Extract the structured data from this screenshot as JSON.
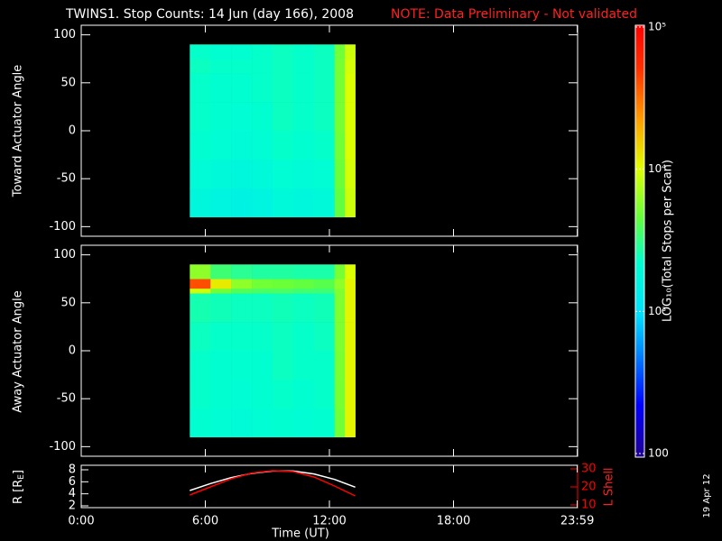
{
  "chart_data": [
    {
      "type": "heatmap",
      "title": "TWINS1. Stop Counts: 14 Jun (day 166), 2008",
      "note": "NOTE: Data Preliminary - Not validated",
      "ylabel": "Toward Actuator Angle",
      "ylim": [
        -110,
        110
      ],
      "yticks": [
        -100,
        -50,
        0,
        50,
        100
      ],
      "colorbar": {
        "label": "LOG₁₀(Total Stops per Scan)",
        "log": true,
        "lim": [
          100,
          100000
        ],
        "ticks": [
          {
            "value": 100,
            "label": "100"
          },
          {
            "value": 1000,
            "label": "10³"
          },
          {
            "value": 10000,
            "label": "10⁴"
          },
          {
            "value": 100000,
            "label": "10⁵"
          }
        ]
      },
      "xedges": [
        5.25,
        6.25,
        7.25,
        8.25,
        9.25,
        10.25,
        11.25,
        12.25,
        12.75,
        13.25
      ],
      "yedges": [
        -90,
        -60,
        -30,
        0,
        30,
        60,
        65,
        75,
        90
      ],
      "z": [
        [
          1800,
          1700,
          1600,
          1700,
          1900,
          1800,
          1900,
          4500,
          9000
        ],
        [
          2000,
          1900,
          1800,
          1900,
          2100,
          2000,
          2100,
          4800,
          9500
        ],
        [
          2200,
          2100,
          2000,
          2100,
          2300,
          2200,
          2300,
          5000,
          10000
        ],
        [
          2300,
          2200,
          2100,
          2200,
          2400,
          2300,
          2400,
          5200,
          10000
        ],
        [
          2300,
          2200,
          2200,
          2300,
          2400,
          2300,
          2400,
          5200,
          10000
        ],
        [
          2400,
          2300,
          2300,
          2300,
          2400,
          2300,
          2400,
          5200,
          9500
        ],
        [
          2400,
          2300,
          2300,
          2300,
          2400,
          2300,
          2400,
          5200,
          9500
        ],
        [
          2300,
          2200,
          2200,
          2300,
          2400,
          2300,
          2400,
          5000,
          9000
        ]
      ]
    },
    {
      "type": "heatmap",
      "ylabel": "Away Actuator Angle",
      "ylim": [
        -110,
        110
      ],
      "yticks": [
        -100,
        -50,
        0,
        50,
        100
      ],
      "xedges": [
        5.25,
        6.25,
        7.25,
        8.25,
        9.25,
        10.25,
        11.25,
        12.25,
        12.75,
        13.25
      ],
      "yedges": [
        -90,
        -60,
        -30,
        0,
        30,
        60,
        65,
        75,
        90
      ],
      "z": [
        [
          2200,
          2100,
          2000,
          2100,
          2200,
          2100,
          2200,
          5000,
          11000
        ],
        [
          2300,
          2200,
          2100,
          2200,
          2300,
          2200,
          2300,
          5200,
          11000
        ],
        [
          2300,
          2200,
          2200,
          2200,
          2400,
          2300,
          2300,
          5300,
          11000
        ],
        [
          2400,
          2300,
          2300,
          2300,
          2400,
          2300,
          2400,
          5400,
          11000
        ],
        [
          2600,
          2500,
          2400,
          2400,
          2500,
          2400,
          2500,
          5500,
          11000
        ],
        [
          9000,
          5000,
          4000,
          3800,
          3800,
          3600,
          3500,
          5500,
          11000
        ],
        [
          40000,
          12000,
          6000,
          5000,
          4800,
          4500,
          4200,
          6000,
          11000
        ],
        [
          6000,
          3500,
          3000,
          2800,
          2800,
          2700,
          2700,
          5200,
          10000
        ]
      ]
    },
    {
      "type": "line",
      "xlabel": "Time (UT)",
      "xlim": [
        0,
        24
      ],
      "xticks": [
        {
          "value": 0,
          "label": "0:00"
        },
        {
          "value": 6,
          "label": "6:00"
        },
        {
          "value": 12,
          "label": "12:00"
        },
        {
          "value": 18,
          "label": "18:00"
        },
        {
          "value": 23.983,
          "label": "23:59"
        }
      ],
      "ylabel": {
        "text": "R [R",
        "sub": "E",
        "end": "]"
      },
      "ylim": [
        1.7,
        8.75
      ],
      "yticks": [
        2,
        4,
        6,
        8
      ],
      "y2label": "L Shell",
      "y2lim": [
        8.5,
        32
      ],
      "y2ticks": [
        10,
        20,
        30
      ],
      "x": [
        5.25,
        6.25,
        7.25,
        8.25,
        9.25,
        10.25,
        11.25,
        12.25,
        13.25
      ],
      "series": [
        {
          "color": "#ffffff",
          "values": [
            4.55,
            5.7,
            6.7,
            7.4,
            7.8,
            7.8,
            7.3,
            6.4,
            5.1
          ]
        },
        {
          "color": "#ff0000",
          "axis": "y2",
          "values": [
            15.5,
            20,
            24.5,
            27.7,
            29,
            28.5,
            25.5,
            20.5,
            15
          ]
        }
      ]
    }
  ],
  "date_stamp": "19 Apr 12"
}
